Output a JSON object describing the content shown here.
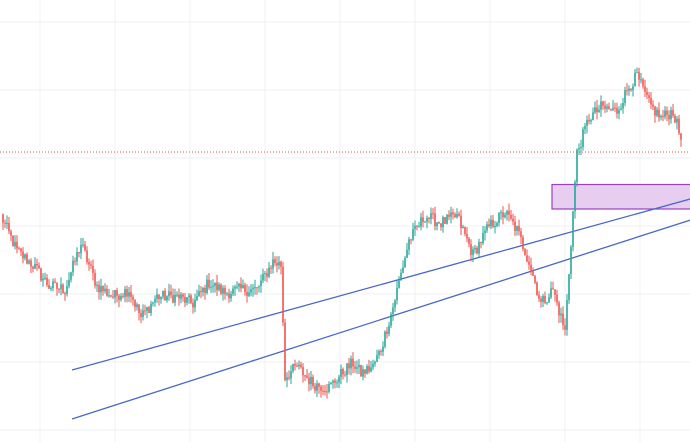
{
  "chart_data": {
    "type": "candlestick",
    "title": "",
    "xlabel": "",
    "ylabel": "",
    "ylim": [
      0,
      100
    ],
    "grid": true,
    "colors": {
      "background": "#ffffff",
      "grid": "#eef0f3",
      "up": "#26a69a",
      "down": "#ef5350",
      "trendline": "#4a66c9",
      "zone_fill": "#e3c6ef",
      "zone_border": "#9b3fc0",
      "price_line": "#ef5350"
    },
    "anchors": [
      [
        0,
        54
      ],
      [
        8,
        44
      ],
      [
        16,
        40
      ],
      [
        24,
        34
      ],
      [
        32,
        33
      ],
      [
        40,
        46
      ],
      [
        48,
        34
      ],
      [
        56,
        31
      ],
      [
        64,
        33
      ],
      [
        70,
        25
      ],
      [
        78,
        31
      ],
      [
        88,
        31
      ],
      [
        96,
        29
      ],
      [
        104,
        35
      ],
      [
        112,
        32
      ],
      [
        120,
        33
      ],
      [
        128,
        33
      ],
      [
        136,
        41
      ],
      [
        140,
        40
      ],
      [
        142,
        8
      ],
      [
        148,
        11
      ],
      [
        156,
        6
      ],
      [
        164,
        5
      ],
      [
        172,
        10
      ],
      [
        176,
        12
      ],
      [
        180,
        9
      ],
      [
        186,
        11
      ],
      [
        190,
        16
      ],
      [
        196,
        28
      ],
      [
        204,
        47
      ],
      [
        212,
        54
      ],
      [
        220,
        52
      ],
      [
        228,
        54
      ],
      [
        236,
        43
      ],
      [
        244,
        51
      ],
      [
        252,
        55
      ],
      [
        258,
        50
      ],
      [
        264,
        41
      ],
      [
        270,
        29
      ],
      [
        276,
        33
      ],
      [
        282,
        21
      ],
      [
        288,
        72
      ],
      [
        294,
        82
      ],
      [
        300,
        85
      ],
      [
        308,
        84
      ],
      [
        314,
        91
      ],
      [
        318,
        94
      ],
      [
        324,
        86
      ],
      [
        330,
        82
      ],
      [
        336,
        84
      ],
      [
        340,
        76
      ]
    ],
    "trendlines": [
      {
        "from": [
          36,
          10
        ],
        "to": [
          346,
          59
        ]
      },
      {
        "from": [
          36,
          -4
        ],
        "to": [
          346,
          53
        ]
      }
    ],
    "zone": {
      "x0": 276,
      "x1": 346,
      "y0": 56,
      "y1": 63
    },
    "price_line": 72.3
  }
}
